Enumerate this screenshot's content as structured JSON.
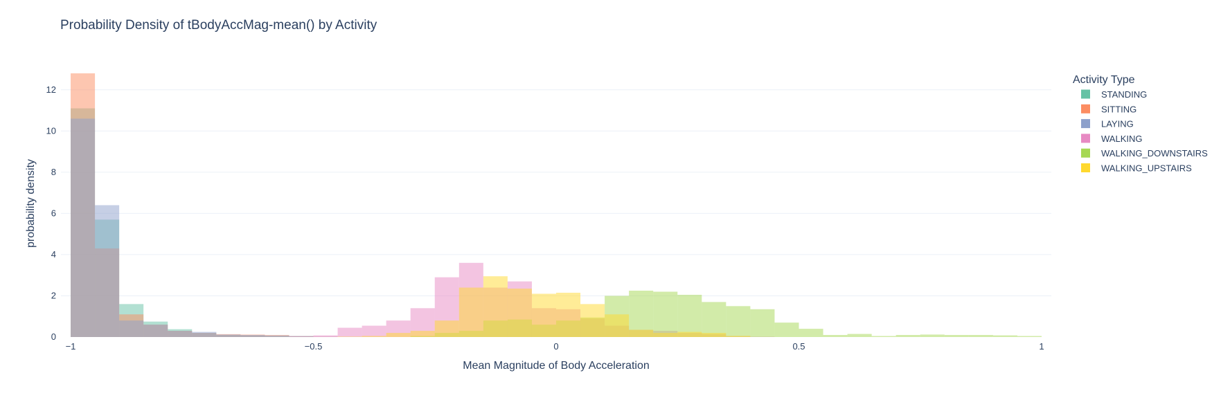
{
  "chart_data": {
    "type": "histogram",
    "title": "Probability Density of tBodyAccMag-mean() by Activity",
    "xlabel": "Mean Magnitude of Body Acceleration",
    "ylabel": "probability density",
    "xlim": [
      -1.02,
      1.02
    ],
    "ylim": [
      0,
      13
    ],
    "xticks": [
      -1,
      -0.5,
      0,
      0.5,
      1
    ],
    "xtick_labels": [
      "−1",
      "−0.5",
      "0",
      "0.5",
      "1"
    ],
    "yticks": [
      0,
      2,
      4,
      6,
      8,
      10,
      12
    ],
    "bins": [
      -1.0,
      -0.95,
      -0.9,
      -0.85,
      -0.8,
      -0.75,
      -0.7,
      -0.65,
      -0.6,
      -0.55,
      -0.5,
      -0.45,
      -0.4,
      -0.35,
      -0.3,
      -0.25,
      -0.2,
      -0.15,
      -0.1,
      -0.05,
      0.0,
      0.05,
      0.1,
      0.15,
      0.2,
      0.25,
      0.3,
      0.35,
      0.4,
      0.45,
      0.5,
      0.55,
      0.6,
      0.65,
      0.7,
      0.75,
      0.8,
      0.85,
      0.9,
      0.95,
      1.0
    ],
    "bin_width": 0.05,
    "opacity": 0.5,
    "legend": {
      "title": "Activity Type",
      "position": "right"
    },
    "grid": true,
    "series": [
      {
        "name": "STANDING",
        "color": "#66c2a5",
        "values": [
          11.1,
          5.7,
          1.6,
          0.75,
          0.38,
          0.2,
          0.1,
          0.08,
          0.05,
          0.03,
          0,
          0,
          0,
          0,
          0,
          0,
          0,
          0,
          0,
          0,
          0,
          0,
          0,
          0,
          0,
          0,
          0,
          0,
          0,
          0,
          0,
          0,
          0,
          0,
          0,
          0,
          0,
          0,
          0,
          0
        ]
      },
      {
        "name": "SITTING",
        "color": "#fc8d62",
        "values": [
          12.8,
          4.3,
          1.1,
          0.6,
          0.3,
          0.2,
          0.14,
          0.12,
          0.1,
          0.05,
          0.02,
          0,
          0,
          0,
          0,
          0,
          0,
          0,
          0,
          0,
          0,
          0,
          0,
          0,
          0,
          0,
          0,
          0,
          0,
          0,
          0,
          0,
          0,
          0,
          0,
          0,
          0,
          0,
          0,
          0
        ]
      },
      {
        "name": "LAYING",
        "color": "#8da0cb",
        "values": [
          10.6,
          6.4,
          0.8,
          0.6,
          0.3,
          0.25,
          0.12,
          0.1,
          0.08,
          0.05,
          0.02,
          0,
          0,
          0,
          0,
          0,
          0,
          0,
          0,
          0,
          0,
          0,
          0,
          0,
          0,
          0,
          0,
          0,
          0,
          0,
          0,
          0,
          0,
          0,
          0,
          0,
          0,
          0,
          0,
          0
        ]
      },
      {
        "name": "WALKING",
        "color": "#e78ac3",
        "values": [
          0,
          0,
          0,
          0,
          0,
          0,
          0,
          0,
          0,
          0.02,
          0.08,
          0.45,
          0.55,
          0.8,
          1.4,
          2.9,
          3.6,
          2.4,
          2.7,
          1.4,
          1.35,
          0.9,
          0.55,
          0.35,
          0.3,
          0.2,
          0.15,
          0.05,
          0.02,
          0,
          0,
          0,
          0,
          0,
          0,
          0,
          0,
          0,
          0,
          0
        ]
      },
      {
        "name": "WALKING_DOWNSTAIRS",
        "color": "#a6d854",
        "values": [
          0,
          0,
          0,
          0,
          0,
          0,
          0,
          0,
          0,
          0,
          0,
          0,
          0,
          0,
          0.05,
          0.2,
          0.3,
          0.8,
          0.85,
          0.6,
          0.8,
          0.95,
          2.0,
          2.25,
          2.2,
          2.05,
          1.7,
          1.5,
          1.35,
          0.7,
          0.4,
          0.1,
          0.15,
          0.05,
          0.1,
          0.12,
          0.1,
          0.1,
          0.08,
          0.05
        ]
      },
      {
        "name": "WALKING_UPSTAIRS",
        "color": "#ffd92f",
        "values": [
          0,
          0,
          0,
          0,
          0,
          0,
          0,
          0,
          0,
          0,
          0,
          0.02,
          0.05,
          0.2,
          0.3,
          0.8,
          2.4,
          2.95,
          2.35,
          2.1,
          2.15,
          1.6,
          1.1,
          0.35,
          0.2,
          0.25,
          0.2,
          0.05,
          0,
          0,
          0,
          0,
          0,
          0,
          0,
          0,
          0,
          0,
          0,
          0
        ]
      }
    ]
  }
}
